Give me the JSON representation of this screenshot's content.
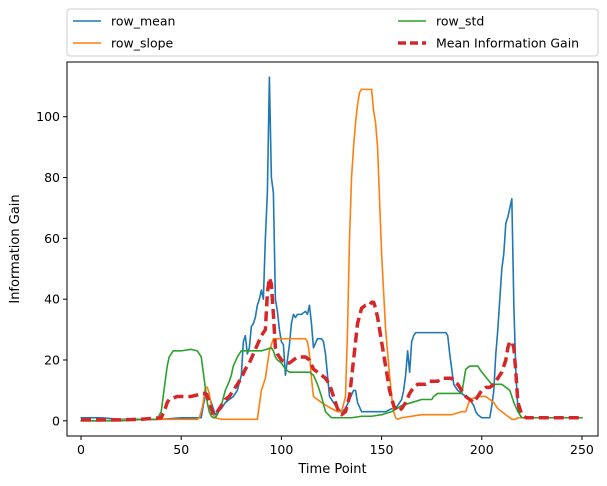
{
  "chart_data": {
    "type": "line",
    "title": "",
    "xlabel": "Time Point",
    "ylabel": "Information Gain",
    "xlim": [
      -7,
      258
    ],
    "ylim": [
      -5,
      118
    ],
    "xticks": [
      0,
      50,
      100,
      150,
      200,
      250
    ],
    "yticks": [
      0,
      20,
      40,
      60,
      80,
      100
    ],
    "grid": false,
    "legend": {
      "placement": "top, outside plot",
      "columns": 2
    },
    "series": [
      {
        "name": "row_mean",
        "color": "#1f77b4",
        "style": "solid",
        "x": [
          0,
          10,
          20,
          30,
          40,
          50,
          55,
          60,
          61,
          62,
          63,
          64,
          65,
          66,
          67,
          70,
          72,
          74,
          76,
          78,
          80,
          81,
          82,
          83,
          84,
          85,
          86,
          87,
          88,
          89,
          90,
          91,
          92,
          93,
          94,
          95,
          96,
          97,
          98,
          99,
          100,
          101,
          102,
          103,
          104,
          105,
          106,
          107,
          108,
          110,
          112,
          113,
          114,
          115,
          116,
          118,
          120,
          121,
          122,
          124,
          126,
          128,
          130,
          132,
          134,
          136,
          137,
          138,
          140,
          145,
          150,
          152,
          155,
          157,
          158,
          160,
          161,
          162,
          163,
          164,
          165,
          166,
          167,
          168,
          170,
          172,
          174,
          176,
          178,
          180,
          182,
          183,
          184,
          186,
          188,
          190,
          192,
          194,
          196,
          197,
          198,
          200,
          202,
          204,
          205,
          206,
          207,
          208,
          209,
          210,
          211,
          212,
          213,
          214,
          215,
          216,
          217,
          218,
          219,
          220,
          222,
          225,
          230,
          240,
          250
        ],
        "y": [
          1,
          1,
          0.5,
          0.5,
          0.5,
          1,
          1,
          1,
          5,
          8,
          9,
          8,
          6,
          4,
          2,
          4,
          6,
          7,
          8,
          10,
          15,
          26,
          28,
          22,
          24,
          31,
          32,
          34,
          38,
          40,
          43,
          40,
          60,
          75,
          113,
          80,
          75,
          40,
          36,
          30,
          26,
          25,
          15,
          20,
          25,
          32,
          35,
          34,
          35,
          35,
          36,
          35,
          38,
          32,
          24,
          27,
          27,
          26,
          22,
          8,
          6,
          4,
          3,
          4,
          7,
          10,
          10,
          6,
          3,
          3,
          3,
          3,
          4,
          4,
          5,
          7,
          10,
          15,
          23,
          16,
          26,
          28,
          29,
          29,
          29,
          29,
          29,
          29,
          29,
          29,
          29,
          28,
          22,
          12,
          10,
          9,
          8,
          7,
          5,
          3,
          2,
          1,
          1,
          1,
          5,
          10,
          22,
          30,
          40,
          50,
          55,
          65,
          67,
          70,
          73,
          38,
          16,
          4,
          2,
          1,
          1,
          1,
          1,
          1,
          1
        ]
      },
      {
        "name": "row_slope",
        "color": "#ff7f0e",
        "style": "solid",
        "x": [
          0,
          10,
          20,
          30,
          40,
          50,
          55,
          58,
          59,
          60,
          61,
          62,
          63,
          64,
          65,
          66,
          67,
          70,
          80,
          88,
          90,
          92,
          94,
          95,
          96,
          97,
          98,
          100,
          105,
          110,
          111,
          112,
          113,
          114,
          115,
          116,
          120,
          125,
          128,
          130,
          132,
          133,
          134,
          135,
          136,
          137,
          138,
          139,
          140,
          142,
          144,
          145,
          146,
          147,
          148,
          150,
          152,
          154,
          155,
          156,
          157,
          158,
          160,
          170,
          180,
          185,
          190,
          192,
          194,
          198,
          200,
          202,
          204,
          206,
          208,
          210,
          212,
          214,
          215,
          216,
          217,
          218,
          220,
          225,
          230,
          240,
          250
        ],
        "y": [
          0,
          0,
          0.3,
          0.3,
          0.5,
          0.5,
          0.5,
          0.5,
          1,
          3,
          6,
          11,
          11,
          9,
          5,
          2,
          1,
          0.5,
          0.5,
          0.5,
          10,
          14,
          23,
          25,
          27,
          27,
          27,
          27,
          27,
          27,
          27,
          27,
          26,
          22,
          14,
          8,
          6,
          4,
          3,
          3,
          8,
          30,
          60,
          80,
          90,
          98,
          104,
          108,
          109,
          109,
          109,
          109,
          102,
          98,
          90,
          55,
          30,
          15,
          8,
          3,
          1,
          0.5,
          1,
          2,
          2,
          2,
          3,
          3,
          7,
          8,
          8,
          8,
          7,
          6,
          4,
          3,
          2,
          1,
          0.5,
          0.5,
          0.5,
          1,
          1,
          1,
          1,
          1,
          1
        ]
      },
      {
        "name": "row_std",
        "color": "#2ca02c",
        "style": "solid",
        "x": [
          0,
          10,
          20,
          30,
          38,
          40,
          41,
          42,
          43,
          44,
          45,
          46,
          47,
          48,
          50,
          55,
          58,
          60,
          61,
          62,
          63,
          64,
          65,
          66,
          67,
          68,
          70,
          72,
          74,
          75,
          76,
          78,
          80,
          85,
          90,
          95,
          96,
          97,
          98,
          100,
          102,
          104,
          106,
          108,
          110,
          112,
          114,
          116,
          118,
          120,
          122,
          125,
          130,
          135,
          140,
          145,
          150,
          155,
          160,
          165,
          170,
          175,
          176,
          178,
          180,
          185,
          190,
          191,
          192,
          194,
          196,
          198,
          200,
          205,
          210,
          212,
          214,
          216,
          218,
          220,
          225,
          230,
          240,
          250
        ],
        "y": [
          0,
          0,
          0,
          0.5,
          0.5,
          3,
          8,
          13,
          18,
          21,
          22,
          23,
          23,
          23,
          23,
          23.5,
          23,
          21,
          16,
          11,
          6,
          3,
          1.5,
          1,
          1,
          2,
          5,
          10,
          13,
          15,
          18,
          21,
          23,
          23,
          23,
          24,
          23,
          21,
          20,
          19,
          17,
          16,
          16,
          16,
          16,
          16,
          16,
          15,
          12,
          8,
          3,
          1,
          1,
          1,
          1.5,
          1.5,
          2,
          3,
          5,
          6,
          7,
          7,
          8,
          9,
          9,
          9,
          9,
          13,
          17,
          18,
          18,
          18,
          16,
          12,
          12,
          11,
          10,
          6,
          3,
          1,
          1,
          1,
          1,
          1
        ]
      },
      {
        "name": "Mean Information Gain",
        "color": "#d62728",
        "style": "dashed",
        "x": [
          0,
          10,
          20,
          30,
          40,
          42,
          43,
          44,
          46,
          48,
          50,
          55,
          58,
          60,
          62,
          63,
          64,
          65,
          66,
          67,
          68,
          70,
          72,
          74,
          76,
          78,
          80,
          82,
          84,
          86,
          88,
          90,
          92,
          93,
          94,
          95,
          96,
          97,
          98,
          100,
          102,
          104,
          106,
          108,
          110,
          112,
          114,
          116,
          118,
          120,
          122,
          124,
          126,
          128,
          130,
          132,
          134,
          136,
          138,
          140,
          142,
          144,
          145,
          146,
          147,
          148,
          150,
          152,
          154,
          156,
          158,
          160,
          162,
          164,
          166,
          168,
          170,
          172,
          174,
          176,
          178,
          180,
          182,
          184,
          185,
          186,
          188,
          190,
          192,
          194,
          196,
          198,
          200,
          202,
          204,
          206,
          208,
          210,
          212,
          213,
          214,
          215,
          216,
          217,
          218,
          220,
          222,
          225,
          230,
          240,
          250
        ],
        "y": [
          0.3,
          0.3,
          0.3,
          0.5,
          1,
          4,
          6,
          7,
          7.5,
          8,
          8,
          8,
          8.5,
          9,
          9,
          8,
          6,
          4,
          2,
          2,
          3,
          5,
          7,
          8,
          10,
          12,
          14,
          17,
          19,
          22,
          25,
          28,
          30,
          42,
          47,
          45,
          35,
          24,
          22,
          20,
          19,
          19,
          20,
          21,
          21,
          21,
          20,
          17,
          16,
          15,
          14,
          12,
          8,
          4,
          2,
          3,
          8,
          20,
          32,
          37,
          38,
          38,
          39,
          39,
          37,
          34,
          26,
          18,
          10,
          5,
          3,
          4,
          6,
          9,
          11,
          12,
          12,
          12,
          13,
          13,
          13,
          14,
          14,
          14,
          14,
          13,
          12,
          10,
          8,
          7,
          6,
          8,
          10,
          11,
          11,
          12,
          14,
          16,
          20,
          24,
          26,
          26,
          24,
          16,
          6,
          2,
          1,
          1,
          1,
          1,
          1
        ]
      }
    ]
  }
}
